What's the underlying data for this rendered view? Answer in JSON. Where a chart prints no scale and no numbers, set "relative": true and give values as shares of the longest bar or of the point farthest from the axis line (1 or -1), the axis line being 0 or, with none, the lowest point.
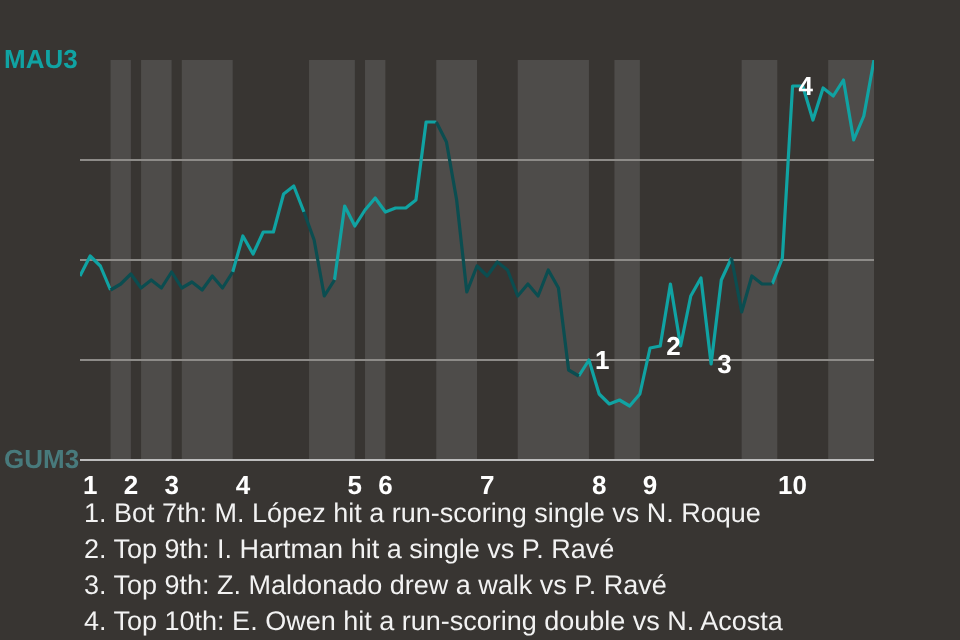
{
  "chart_data": {
    "type": "line",
    "relative": true,
    "categories": [
      null,
      "1",
      null,
      null,
      null,
      "2",
      null,
      null,
      null,
      "3",
      null,
      null,
      null,
      null,
      null,
      null,
      "4",
      null,
      null,
      null,
      null,
      null,
      null,
      null,
      null,
      null,
      null,
      "5",
      null,
      null,
      "6",
      null,
      null,
      null,
      null,
      null,
      null,
      null,
      null,
      null,
      "7",
      null,
      null,
      null,
      null,
      null,
      null,
      null,
      null,
      null,
      null,
      "8",
      null,
      null,
      null,
      null,
      "9",
      null,
      null,
      null,
      null,
      null,
      null,
      null,
      null,
      null,
      null,
      null,
      null,
      null,
      "10",
      null,
      null,
      null,
      null,
      null,
      null,
      null,
      null
    ],
    "series": [
      {
        "color": "#10a3a3",
        "values": [
          0.46,
          0.51,
          0.485,
          0.425,
          null,
          null,
          null,
          null,
          null,
          null,
          null,
          null,
          null,
          null,
          null,
          0.47,
          0.56,
          0.515,
          0.57,
          0.57,
          0.665,
          0.685,
          0.62,
          null,
          null,
          0.45,
          0.635,
          0.585,
          0.625,
          0.655,
          0.62,
          0.63,
          0.63,
          0.65,
          0.845,
          0.845,
          null,
          null,
          null,
          null,
          null,
          null,
          null,
          null,
          null,
          null,
          null,
          null,
          null,
          0.21,
          0.25,
          0.165,
          0.14,
          0.15,
          0.135,
          0.165,
          0.28,
          0.285,
          0.44,
          0.285,
          0.41,
          0.455,
          0.24,
          0.45,
          0.505,
          null,
          null,
          null,
          0.44,
          0.505,
          0.935,
          0.935,
          0.85,
          0.93,
          0.91,
          0.95,
          0.8,
          0.86,
          1
        ]
      },
      {
        "color": "#0b4d50",
        "values": [
          null,
          null,
          null,
          0.425,
          0.44,
          0.465,
          0.43,
          0.45,
          0.43,
          0.47,
          0.43,
          0.445,
          0.425,
          0.46,
          0.43,
          0.47,
          null,
          null,
          null,
          null,
          null,
          null,
          0.62,
          0.55,
          0.41,
          0.45,
          null,
          null,
          null,
          null,
          null,
          null,
          null,
          null,
          null,
          0.845,
          0.795,
          0.65,
          0.42,
          0.485,
          0.46,
          0.495,
          0.475,
          0.41,
          0.44,
          0.41,
          0.475,
          0.43,
          0.225,
          0.21,
          null,
          null,
          null,
          null,
          null,
          null,
          null,
          null,
          null,
          null,
          null,
          null,
          null,
          null,
          0.505,
          0.37,
          0.46,
          0.44,
          0.44,
          null,
          null,
          null,
          null,
          null,
          null,
          null,
          null,
          null,
          null
        ]
      }
    ],
    "marker": "none",
    "line_style": "solid",
    "ref_lines": [
      {
        "axis": "y",
        "value": 0.25,
        "color": "#8d8b88"
      },
      {
        "axis": "y",
        "value": 0.5,
        "color": "#8d8b88"
      },
      {
        "axis": "y",
        "value": 0.75,
        "color": "#8d8b88"
      }
    ],
    "annotations": [
      "MAU3",
      "GUM3",
      {
        "text": "1",
        "y": 0.25
      },
      {
        "text": "2",
        "y": 0.285
      },
      {
        "text": "3",
        "y": 0.24
      },
      {
        "text": "4",
        "y": 0.935
      },
      "1. Bot 7th: M. López hit a run-scoring single vs N. Roque",
      "2. Top 9th: I. Hartman hit a single vs P. Ravé",
      "3. Top 9th: Z. Maldonado drew a walk vs P. Ravé",
      "4. Top 10th: E. Owen hit a run-scoring double vs N. Acosta"
    ]
  }
}
